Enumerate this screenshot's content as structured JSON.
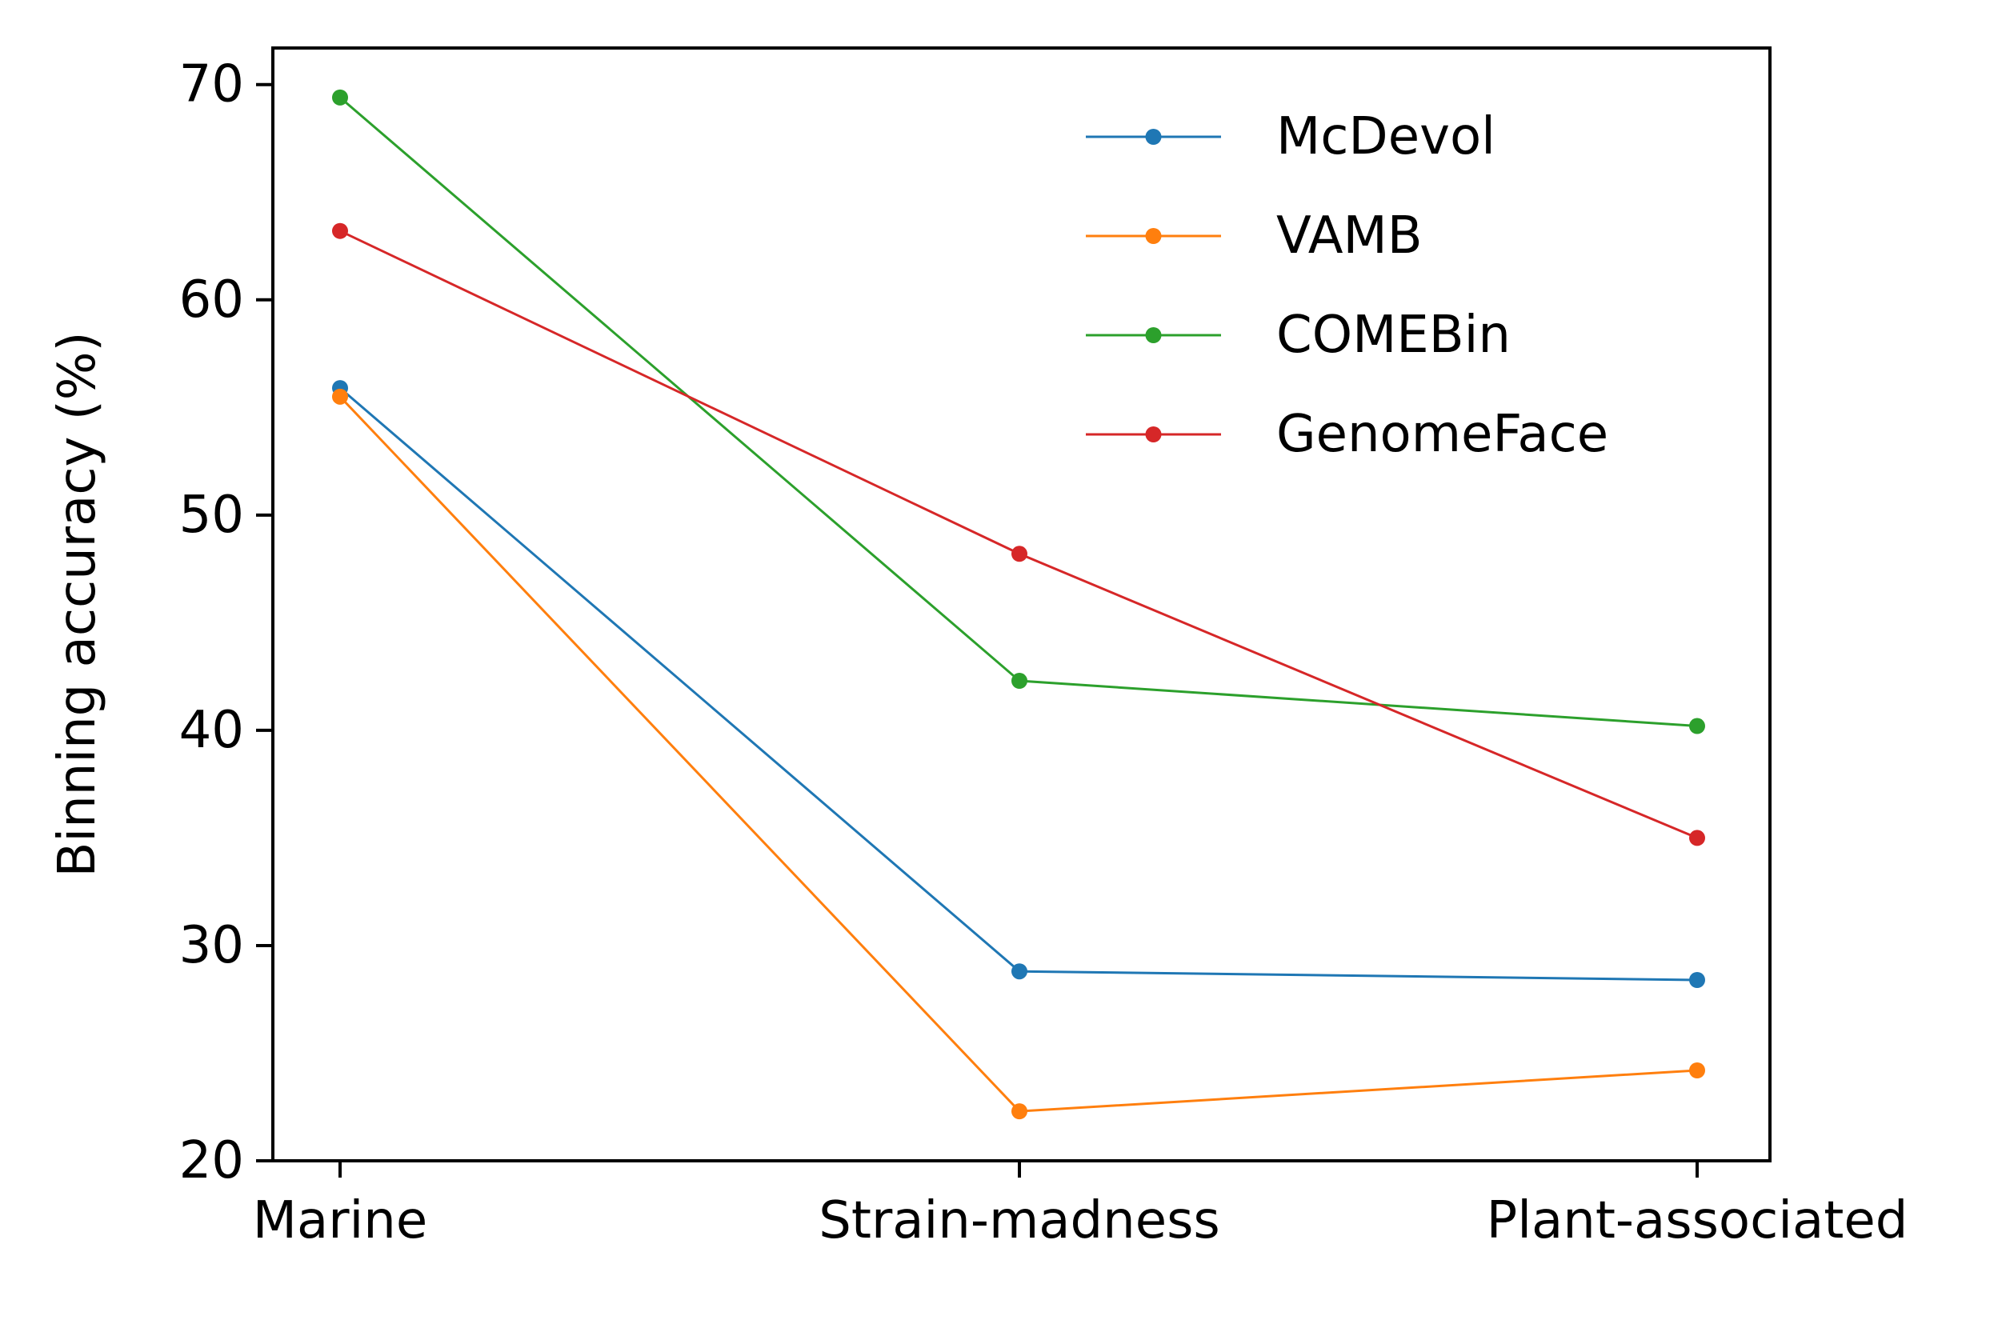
{
  "chart_data": {
    "type": "line",
    "categories": [
      "Marine",
      "Strain-madness",
      "Plant-associated"
    ],
    "series": [
      {
        "name": "McDevol",
        "values": [
          55.9,
          28.8,
          28.4
        ],
        "color": "#1f77b4"
      },
      {
        "name": "VAMB",
        "values": [
          55.5,
          22.3,
          24.2
        ],
        "color": "#ff7f0e"
      },
      {
        "name": "COMEBin",
        "values": [
          69.4,
          42.3,
          40.2
        ],
        "color": "#2ca02c"
      },
      {
        "name": "GenomeFace",
        "values": [
          63.2,
          48.2,
          35.0
        ],
        "color": "#d62728"
      }
    ],
    "title": "",
    "xlabel": "",
    "ylabel": "Binning accuracy (%)",
    "ylim": [
      20,
      71.7
    ],
    "yticks": [
      20,
      30,
      40,
      50,
      60,
      70
    ],
    "grid": false,
    "legend_position": "top-right"
  }
}
